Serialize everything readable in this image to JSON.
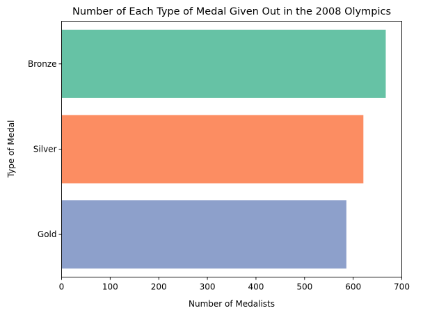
{
  "chart_data": {
    "type": "bar",
    "orientation": "horizontal",
    "title": "Number of Each Type of Medal Given Out in the 2008 Olympics",
    "xlabel": "Number of Medalists",
    "ylabel": "Type of Medal",
    "categories": [
      "Bronze",
      "Silver",
      "Gold"
    ],
    "values": [
      667,
      621,
      586
    ],
    "colors": [
      "#66c2a5",
      "#fc8d62",
      "#8da0cb"
    ],
    "xlim": [
      0,
      700
    ],
    "xticks": [
      0,
      100,
      200,
      300,
      400,
      500,
      600,
      700
    ],
    "grid": false,
    "legend": "none"
  }
}
